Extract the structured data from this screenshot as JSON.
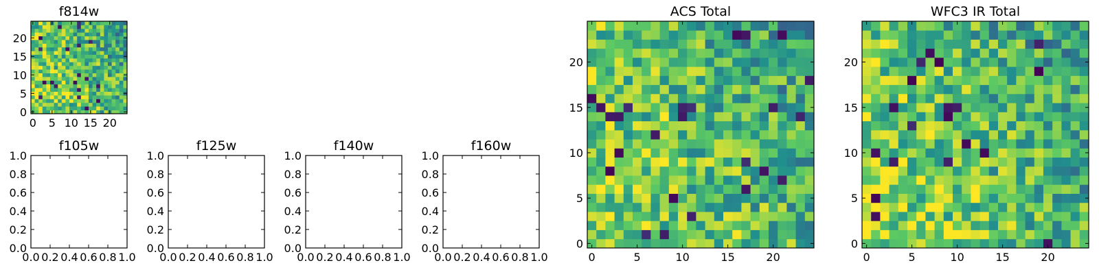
{
  "figure": {
    "type": "heatmap-grid",
    "panels": [
      {
        "id": "f814w",
        "title": "f814w",
        "type": "heatmap",
        "grid": [
          25,
          25
        ],
        "seed": 11,
        "xticks": [
          "0",
          "5",
          "10",
          "15",
          "20"
        ],
        "yticks": [
          "0",
          "5",
          "10",
          "15",
          "20"
        ]
      },
      {
        "id": "f105w",
        "title": "f105w",
        "type": "empty",
        "xticks": [
          "0.0",
          "0.2",
          "0.4",
          "0.6",
          "0.8",
          "1.0"
        ],
        "yticks": [
          "0.0",
          "0.2",
          "0.4",
          "0.6",
          "0.8",
          "1.0"
        ]
      },
      {
        "id": "f125w",
        "title": "f125w",
        "type": "empty",
        "xticks": [
          "0.0",
          "0.2",
          "0.4",
          "0.6",
          "0.8",
          "1.0"
        ],
        "yticks": [
          "0.0",
          "0.2",
          "0.4",
          "0.6",
          "0.8",
          "1.0"
        ]
      },
      {
        "id": "f140w",
        "title": "f140w",
        "type": "empty",
        "xticks": [
          "0.0",
          "0.2",
          "0.4",
          "0.6",
          "0.8",
          "1.0"
        ],
        "yticks": [
          "0.0",
          "0.2",
          "0.4",
          "0.6",
          "0.8",
          "1.0"
        ]
      },
      {
        "id": "f160w",
        "title": "f160w",
        "type": "empty",
        "xticks": [
          "0.0",
          "0.2",
          "0.4",
          "0.6",
          "0.8",
          "1.0"
        ],
        "yticks": [
          "0.0",
          "0.2",
          "0.4",
          "0.6",
          "0.8",
          "1.0"
        ]
      },
      {
        "id": "acs-total",
        "title": "ACS Total",
        "type": "heatmap",
        "grid": [
          25,
          25
        ],
        "seed": 23,
        "xticks": [
          "0",
          "5",
          "10",
          "15",
          "20"
        ],
        "yticks": [
          "0",
          "5",
          "10",
          "15",
          "20"
        ]
      },
      {
        "id": "wfc3-ir-total",
        "title": "WFC3 IR Total",
        "type": "heatmap",
        "grid": [
          25,
          25
        ],
        "seed": 37,
        "xticks": [
          "0",
          "5",
          "10",
          "15",
          "20"
        ],
        "yticks": [
          "0",
          "5",
          "10",
          "15",
          "20"
        ]
      }
    ],
    "colormap": [
      "#440154",
      "#3b528b",
      "#21908d",
      "#5dc963",
      "#fde725"
    ],
    "axis_color": "#000000"
  }
}
